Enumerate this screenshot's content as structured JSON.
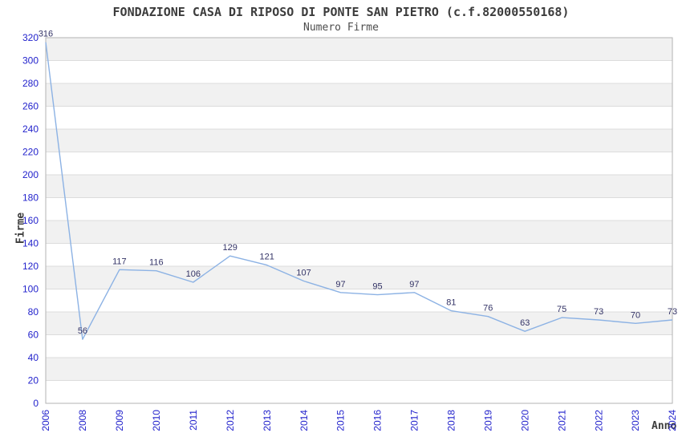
{
  "header": {
    "title": "FONDAZIONE CASA DI RIPOSO DI PONTE SAN PIETRO (c.f.82000550168)",
    "subtitle": "Numero Firme"
  },
  "chart_data": {
    "type": "line",
    "title": "FONDAZIONE CASA DI RIPOSO DI PONTE SAN PIETRO (c.f.82000550168)",
    "subtitle": "Numero Firme",
    "xlabel": "Anno",
    "ylabel": "Firme",
    "categories": [
      "2006",
      "2008",
      "2009",
      "2010",
      "2011",
      "2012",
      "2013",
      "2014",
      "2015",
      "2016",
      "2017",
      "2018",
      "2019",
      "2020",
      "2021",
      "2022",
      "2023",
      "2024"
    ],
    "series": [
      {
        "name": "Numero Firme",
        "values": [
          316,
          56,
          117,
          116,
          106,
          129,
          121,
          107,
          97,
          95,
          97,
          81,
          76,
          63,
          75,
          73,
          70,
          73
        ]
      }
    ],
    "ylim": [
      0,
      320
    ],
    "ytick_step": 20,
    "grid": "horizontal-bands",
    "legend_position": "none",
    "data_labels_visible": true,
    "colors": {
      "line": "#8cb2e4",
      "data_label": "#333366",
      "tick_label": "#2222cc",
      "band_gray": "#f1f1f1",
      "band_white": "#ffffff",
      "gridline": "#dcdcdc",
      "plot_border": "#b3b3b3",
      "title_text": "#3c3c3c"
    }
  }
}
